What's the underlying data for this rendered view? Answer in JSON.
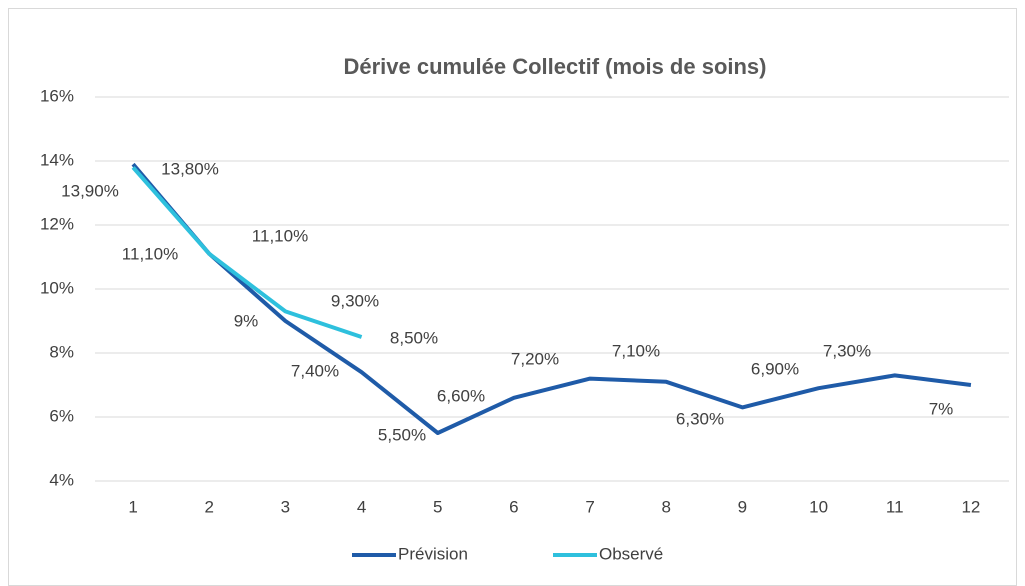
{
  "chart_data": {
    "type": "line",
    "title": "Dérive cumulée Collectif (mois de soins)",
    "categories": [
      "1",
      "2",
      "3",
      "4",
      "5",
      "6",
      "7",
      "8",
      "9",
      "10",
      "11",
      "12"
    ],
    "series": [
      {
        "name": "Prévision",
        "color": "#1f5ba8",
        "values": [
          13.9,
          11.1,
          9,
          7.4,
          5.5,
          6.6,
          7.2,
          7.1,
          6.3,
          6.9,
          7.3,
          7
        ],
        "value_labels": [
          "13,90%",
          "11,10%",
          "9%",
          "7,40%",
          "5,50%",
          "6,60%",
          "7,20%",
          "7,10%",
          "6,30%",
          "6,90%",
          "7,30%",
          "7%"
        ]
      },
      {
        "name": "Observé",
        "color": "#2ec0dd",
        "values": [
          13.8,
          11.1,
          9.3,
          8.5,
          null,
          null,
          null,
          null,
          null,
          null,
          null,
          null
        ],
        "value_labels": [
          "13,80%",
          "11,10%",
          "9,30%",
          "8,50%",
          null,
          null,
          null,
          null,
          null,
          null,
          null,
          null
        ]
      }
    ],
    "ylim": [
      4,
      16
    ],
    "yticks": [
      {
        "value": 4,
        "label": "4%"
      },
      {
        "value": 6,
        "label": "6%"
      },
      {
        "value": 8,
        "label": "8%"
      },
      {
        "value": 10,
        "label": "10%"
      },
      {
        "value": 12,
        "label": "12%"
      },
      {
        "value": 14,
        "label": "14%"
      },
      {
        "value": 16,
        "label": "16%"
      }
    ],
    "grid": true,
    "legend": "bottom"
  }
}
